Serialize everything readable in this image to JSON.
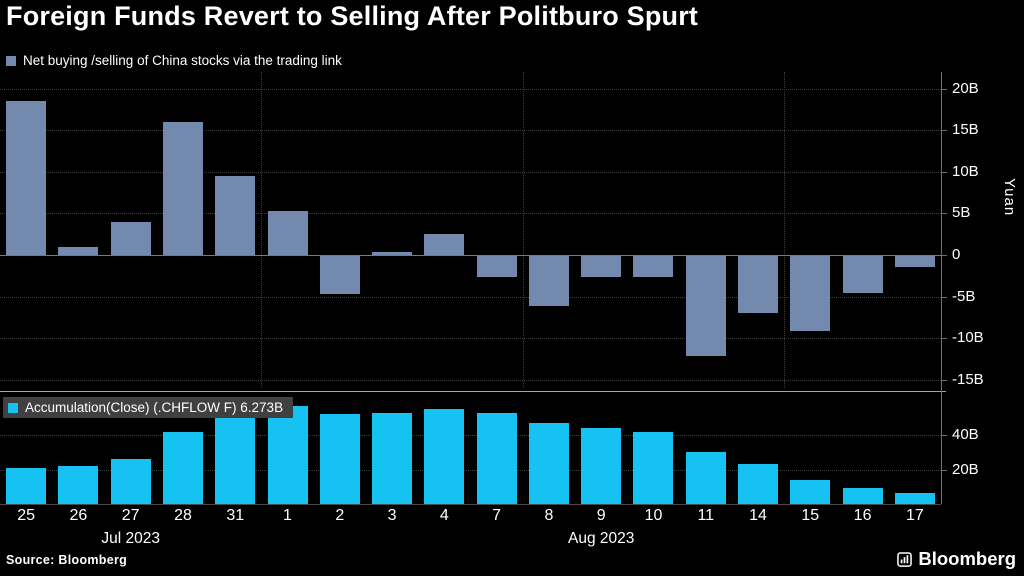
{
  "title": "Foreign Funds Revert to Selling After Politburo Spurt",
  "source_label": "Source: Bloomberg",
  "brand_label": "Bloomberg",
  "colors": {
    "background": "#000000",
    "net_flow_bar": "#7389ad",
    "accumulation_bar": "#15c2f2",
    "gridline": "#3d3d3d",
    "zero_line": "#7a7a7a",
    "axis_line": "#6f6f6f",
    "panel_separator": "#a6a6a6",
    "text": "#ffffff",
    "legend_highlight_bg": "#404040"
  },
  "chart_data": [
    {
      "type": "bar",
      "panel": "top",
      "legend": "Net buying /selling of China stocks via the trading link",
      "ylabel": "Yuan",
      "unit": "B",
      "categories": [
        "25",
        "26",
        "27",
        "28",
        "31",
        "1",
        "2",
        "3",
        "4",
        "7",
        "8",
        "9",
        "10",
        "11",
        "14",
        "15",
        "16",
        "17"
      ],
      "values": [
        18.5,
        1.0,
        4.0,
        16.0,
        9.5,
        5.3,
        -4.7,
        0.3,
        2.5,
        -2.6,
        -6.2,
        -2.6,
        -2.7,
        -12.2,
        -7.0,
        -9.2,
        -4.6,
        -1.4
      ],
      "yticks": [
        20,
        15,
        10,
        5,
        0,
        -5,
        -10,
        -15
      ],
      "ylim": [
        -16,
        22
      ],
      "grid": true,
      "legend_position": "top-left"
    },
    {
      "type": "bar",
      "panel": "bottom",
      "legend": "Accumulation(Close) (.CHFLOW F) 6.273B",
      "last_value": 6.273,
      "unit": "B",
      "categories": [
        "25",
        "26",
        "27",
        "28",
        "31",
        "1",
        "2",
        "3",
        "4",
        "7",
        "8",
        "9",
        "10",
        "11",
        "14",
        "15",
        "16",
        "17"
      ],
      "values": [
        21,
        22,
        26,
        42,
        51.5,
        57,
        52.5,
        53,
        55.5,
        53,
        47,
        44.5,
        42,
        30,
        23,
        14,
        9.5,
        6.273
      ],
      "yticks": [
        40,
        20
      ],
      "ylim": [
        0,
        64
      ],
      "grid": true,
      "legend_position": "top-left-overlay"
    }
  ],
  "x_axis": {
    "labels": [
      "25",
      "26",
      "27",
      "28",
      "31",
      "1",
      "2",
      "3",
      "4",
      "7",
      "8",
      "9",
      "10",
      "11",
      "14",
      "15",
      "16",
      "17"
    ],
    "months": [
      {
        "label": "Jul 2023",
        "start_index": 0,
        "end_index": 4
      },
      {
        "label": "Aug 2023",
        "start_index": 5,
        "end_index": 17
      }
    ],
    "week_boundary_indices": [
      5,
      10,
      15
    ]
  }
}
